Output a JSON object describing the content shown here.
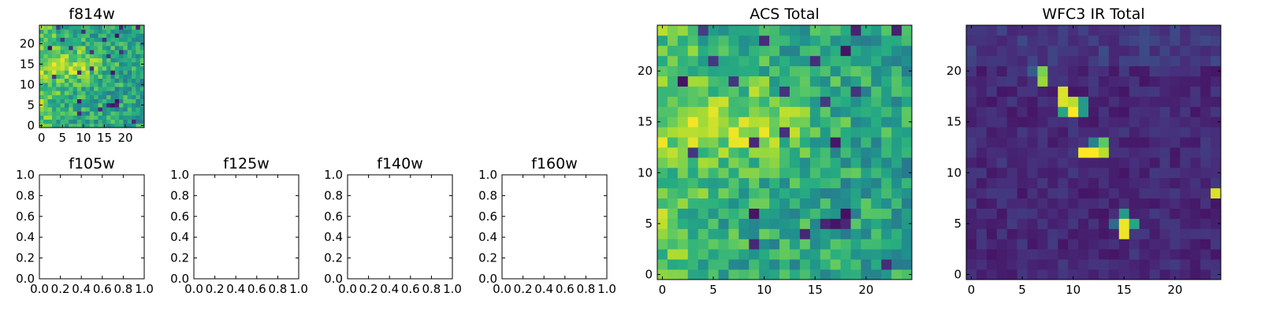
{
  "chart_data": [
    {
      "type": "heatmap",
      "title": "f814w",
      "xlim": [
        -0.5,
        24.5
      ],
      "ylim": [
        -0.5,
        24.5
      ],
      "xticks": [
        0,
        5,
        10,
        15,
        20
      ],
      "yticks": [
        0,
        5,
        10,
        15,
        20
      ],
      "colormap": "viridis",
      "grid": false,
      "size": [
        25,
        25
      ],
      "pattern": "acs"
    },
    {
      "type": "empty",
      "title": "f105w",
      "xlim": [
        0,
        1
      ],
      "ylim": [
        0,
        1
      ],
      "xticks": [
        "0.0",
        "0.2",
        "0.4",
        "0.6",
        "0.8",
        "1.0"
      ],
      "yticks": [
        "0.0",
        "0.2",
        "0.4",
        "0.6",
        "0.8",
        "1.0"
      ]
    },
    {
      "type": "empty",
      "title": "f125w",
      "xlim": [
        0,
        1
      ],
      "ylim": [
        0,
        1
      ],
      "xticks": [
        "0.0",
        "0.2",
        "0.4",
        "0.6",
        "0.8",
        "1.0"
      ],
      "yticks": [
        "0.0",
        "0.2",
        "0.4",
        "0.6",
        "0.8",
        "1.0"
      ]
    },
    {
      "type": "empty",
      "title": "f140w",
      "xlim": [
        0,
        1
      ],
      "ylim": [
        0,
        1
      ],
      "xticks": [
        "0.0",
        "0.2",
        "0.4",
        "0.6",
        "0.8",
        "1.0"
      ],
      "yticks": [
        "0.0",
        "0.2",
        "0.4",
        "0.6",
        "0.8",
        "1.0"
      ]
    },
    {
      "type": "empty",
      "title": "f160w",
      "xlim": [
        0,
        1
      ],
      "ylim": [
        0,
        1
      ],
      "xticks": [
        "0.0",
        "0.2",
        "0.4",
        "0.6",
        "0.8",
        "1.0"
      ],
      "yticks": [
        "0.0",
        "0.2",
        "0.4",
        "0.6",
        "0.8",
        "1.0"
      ]
    },
    {
      "type": "heatmap",
      "title": "ACS Total",
      "xlim": [
        -0.5,
        24.5
      ],
      "ylim": [
        -0.5,
        24.5
      ],
      "xticks": [
        0,
        5,
        10,
        15,
        20
      ],
      "yticks": [
        0,
        5,
        10,
        15,
        20
      ],
      "colormap": "viridis",
      "grid": false,
      "size": [
        25,
        25
      ],
      "pattern": "acs"
    },
    {
      "type": "heatmap",
      "title": "WFC3 IR Total",
      "xlim": [
        -0.5,
        24.5
      ],
      "ylim": [
        -0.5,
        24.5
      ],
      "xticks": [
        0,
        5,
        10,
        15,
        20
      ],
      "yticks": [
        0,
        5,
        10,
        15,
        20
      ],
      "colormap": "viridis",
      "grid": false,
      "size": [
        25,
        25
      ],
      "pattern": "wfc3",
      "bright_pixels": [
        {
          "x": 7,
          "y": 19,
          "v": 0.85
        },
        {
          "x": 7,
          "y": 20,
          "v": 0.8
        },
        {
          "x": 9,
          "y": 18,
          "v": 0.95
        },
        {
          "x": 9,
          "y": 17,
          "v": 0.95
        },
        {
          "x": 10,
          "y": 17,
          "v": 0.9
        },
        {
          "x": 10,
          "y": 16,
          "v": 1.0
        },
        {
          "x": 11,
          "y": 17,
          "v": 0.55
        },
        {
          "x": 11,
          "y": 16,
          "v": 0.55
        },
        {
          "x": 9,
          "y": 16,
          "v": 0.6
        },
        {
          "x": 11,
          "y": 12,
          "v": 1.0
        },
        {
          "x": 12,
          "y": 12,
          "v": 1.0
        },
        {
          "x": 13,
          "y": 12,
          "v": 0.9
        },
        {
          "x": 13,
          "y": 13,
          "v": 0.75
        },
        {
          "x": 12,
          "y": 13,
          "v": 0.45
        },
        {
          "x": 15,
          "y": 6,
          "v": 0.55
        },
        {
          "x": 15,
          "y": 5,
          "v": 0.98
        },
        {
          "x": 15,
          "y": 4,
          "v": 0.98
        },
        {
          "x": 16,
          "y": 5,
          "v": 0.6
        },
        {
          "x": 14,
          "y": 5,
          "v": 0.35
        },
        {
          "x": 24,
          "y": 8,
          "v": 0.95
        },
        {
          "x": 6,
          "y": 20,
          "v": 0.3
        }
      ]
    }
  ]
}
